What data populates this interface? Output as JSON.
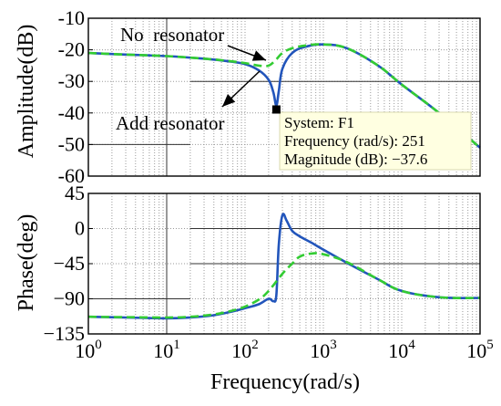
{
  "chart_data": [
    {
      "type": "line",
      "subplot": "magnitude",
      "ylabel": "Amplitude(dB)",
      "xscale": "log",
      "xlim": [
        1,
        100000
      ],
      "ylim": [
        -60,
        -10
      ],
      "y_ticks": [
        "-10",
        "-20",
        "-30",
        "-40",
        "-50",
        "-60"
      ],
      "grid": true,
      "colors": {
        "no_resonator": "#33cc33",
        "add_resonator": "#2255bb"
      },
      "series": [
        {
          "style": "dashed",
          "x": [
            1,
            3,
            10,
            30,
            60,
            100,
            150,
            200,
            251,
            300,
            400,
            600,
            1000,
            2000,
            5000,
            10000,
            30000,
            100000
          ],
          "y": [
            -21,
            -21.5,
            -22,
            -22.8,
            -23.5,
            -24.2,
            -25,
            -25,
            -23,
            -21,
            -19.5,
            -18.6,
            -18.3,
            -19.5,
            -25,
            -31,
            -40,
            -51
          ]
        },
        {
          "style": "solid",
          "x": [
            1,
            3,
            10,
            30,
            60,
            100,
            150,
            200,
            230,
            251,
            270,
            300,
            400,
            600,
            1000,
            2000,
            5000,
            10000,
            30000,
            100000
          ],
          "y": [
            -21,
            -21.5,
            -22,
            -22.8,
            -23.6,
            -24.5,
            -26.5,
            -29.5,
            -33.5,
            -37.6,
            -33,
            -26,
            -21,
            -19,
            -18.3,
            -19.5,
            -25,
            -31,
            -40,
            -51
          ]
        }
      ],
      "annotations": [
        {
          "text": "No  resonator"
        },
        {
          "text": "Add resonator"
        }
      ],
      "datatip": {
        "lines": [
          "System: F1",
          "Frequency (rad/s): 251",
          "Magnitude (dB): −37.6"
        ],
        "x": 251,
        "y": -37.6
      }
    },
    {
      "type": "line",
      "subplot": "phase",
      "xlabel": "Frequency(rad/s)",
      "ylabel": "Phase(deg)",
      "xscale": "log",
      "xlim": [
        1,
        100000
      ],
      "ylim": [
        -135,
        45
      ],
      "y_ticks": [
        "45",
        "0",
        "−45",
        "−90",
        "−135"
      ],
      "x_ticks": [
        {
          "base": "10",
          "exp": "0"
        },
        {
          "base": "10",
          "exp": "1"
        },
        {
          "base": "10",
          "exp": "2"
        },
        {
          "base": "10",
          "exp": "3"
        },
        {
          "base": "10",
          "exp": "4"
        },
        {
          "base": "10",
          "exp": "5"
        }
      ],
      "grid": true,
      "series": [
        {
          "style": "dashed",
          "x": [
            1,
            3,
            10,
            20,
            40,
            70,
            100,
            150,
            200,
            300,
            400,
            500,
            700,
            1000,
            2000,
            5000,
            10000,
            30000,
            100000
          ],
          "y": [
            -113,
            -113.5,
            -114,
            -113,
            -110,
            -105,
            -100,
            -91,
            -80,
            -58,
            -45,
            -36,
            -32,
            -33,
            -43,
            -65,
            -80,
            -88,
            -89
          ]
        },
        {
          "style": "solid",
          "x": [
            1,
            3,
            10,
            20,
            40,
            70,
            100,
            150,
            200,
            230,
            251,
            270,
            300,
            340,
            400,
            500,
            700,
            1000,
            2000,
            5000,
            10000,
            30000,
            100000
          ],
          "y": [
            -113,
            -114,
            -115,
            -114,
            -111,
            -106,
            -102,
            -97,
            -90,
            -93,
            -85,
            -20,
            17,
            10,
            -3,
            -10,
            -18,
            -27,
            -44,
            -65,
            -80,
            -88,
            -89
          ]
        }
      ]
    }
  ]
}
